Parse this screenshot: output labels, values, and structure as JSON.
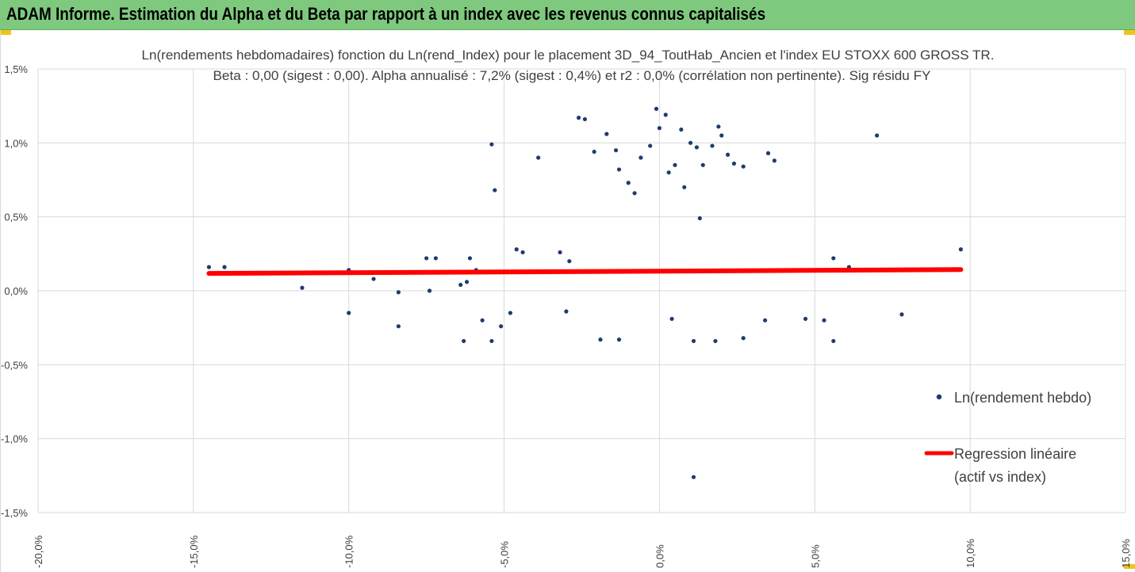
{
  "banner": {
    "title": "ADAM Informe. Estimation du Alpha et du Beta par rapport à un index avec les revenus connus capitalisés"
  },
  "colors": {
    "banner_bg": "#7fc97f",
    "point": "#1f3b70",
    "regression": "#ff0000",
    "grid": "#d9d9d9",
    "accent_corner": "#f0c419"
  },
  "chart_data": {
    "type": "scatter",
    "title": "Ln(rendements hebdomadaires) fonction du Ln(rend_Index) pour le placement 3D_94_ToutHab_Ancien et l'index EU STOXX 600 GROSS TR.",
    "subtitle": "Beta : 0,00 (sigest : 0,00). Alpha annualisé : 7,2% (sigest : 0,4%) et r2 : 0,0% (corrélation non pertinente). Sig résidu FY",
    "xlabel": "",
    "ylabel": "",
    "xlim": [
      -20,
      15
    ],
    "ylim": [
      -1.5,
      1.5
    ],
    "x_ticks": [
      -20,
      -15,
      -10,
      -5,
      0,
      5,
      10,
      15
    ],
    "x_tick_labels": [
      "-20,0%",
      "-15,0%",
      "-10,0%",
      "-5,0%",
      "0,0%",
      "5,0%",
      "10,0%",
      "15,0%"
    ],
    "y_ticks": [
      1.5,
      1.0,
      0.5,
      0.0,
      -0.5,
      -1.0,
      -1.5
    ],
    "y_tick_labels": [
      "1,5%",
      "1,0%",
      "0,5%",
      "0,0%",
      "-0,5%",
      "-1,0%",
      "-1,5%"
    ],
    "grid": true,
    "legend_position": "right",
    "series": [
      {
        "name": "Ln(rendement hebdo)",
        "kind": "scatter",
        "points": [
          [
            -14.5,
            0.16
          ],
          [
            -14.0,
            0.16
          ],
          [
            -11.5,
            0.02
          ],
          [
            -10.0,
            -0.15
          ],
          [
            -10.0,
            0.14
          ],
          [
            -9.2,
            0.08
          ],
          [
            -8.4,
            -0.01
          ],
          [
            -8.4,
            -0.24
          ],
          [
            -7.5,
            0.22
          ],
          [
            -7.2,
            0.22
          ],
          [
            -7.4,
            0.0
          ],
          [
            -6.3,
            -0.34
          ],
          [
            -6.4,
            0.04
          ],
          [
            -6.2,
            0.06
          ],
          [
            -6.1,
            0.22
          ],
          [
            -5.9,
            0.14
          ],
          [
            -5.7,
            -0.2
          ],
          [
            -5.4,
            -0.34
          ],
          [
            -5.1,
            -0.24
          ],
          [
            -5.4,
            0.99
          ],
          [
            -5.3,
            0.68
          ],
          [
            -4.8,
            -0.15
          ],
          [
            -4.6,
            0.28
          ],
          [
            -4.4,
            0.26
          ],
          [
            -3.9,
            0.9
          ],
          [
            -3.2,
            0.26
          ],
          [
            -2.9,
            0.2
          ],
          [
            -3.0,
            -0.14
          ],
          [
            -2.6,
            1.17
          ],
          [
            -2.4,
            1.16
          ],
          [
            -2.1,
            0.94
          ],
          [
            -1.7,
            1.06
          ],
          [
            -1.4,
            0.95
          ],
          [
            -1.3,
            0.82
          ],
          [
            -1.0,
            0.73
          ],
          [
            -0.8,
            0.66
          ],
          [
            -0.6,
            0.9
          ],
          [
            -0.3,
            0.98
          ],
          [
            -0.1,
            1.23
          ],
          [
            0.0,
            1.1
          ],
          [
            0.2,
            1.19
          ],
          [
            0.3,
            0.8
          ],
          [
            0.5,
            0.85
          ],
          [
            0.7,
            1.09
          ],
          [
            0.8,
            0.7
          ],
          [
            1.0,
            1.0
          ],
          [
            1.2,
            0.97
          ],
          [
            1.4,
            0.85
          ],
          [
            1.7,
            0.98
          ],
          [
            1.9,
            1.11
          ],
          [
            2.0,
            1.05
          ],
          [
            2.2,
            0.92
          ],
          [
            2.4,
            0.86
          ],
          [
            2.7,
            0.84
          ],
          [
            3.5,
            0.93
          ],
          [
            3.7,
            0.88
          ],
          [
            -1.9,
            -0.33
          ],
          [
            -1.3,
            -0.33
          ],
          [
            0.4,
            -0.19
          ],
          [
            1.1,
            -0.34
          ],
          [
            1.8,
            -0.34
          ],
          [
            2.7,
            -0.32
          ],
          [
            3.4,
            -0.2
          ],
          [
            4.7,
            -0.19
          ],
          [
            5.3,
            -0.2
          ],
          [
            5.6,
            -0.34
          ],
          [
            5.6,
            0.22
          ],
          [
            6.1,
            0.16
          ],
          [
            7.8,
            -0.16
          ],
          [
            8.2,
            0.14
          ],
          [
            9.7,
            0.28
          ],
          [
            7.0,
            1.05
          ],
          [
            1.1,
            -1.26
          ],
          [
            1.3,
            0.49
          ]
        ]
      },
      {
        "name": "Regression linéaire (actif vs index)",
        "legend_lines": [
          "Regression linéaire",
          "(actif vs index)"
        ],
        "kind": "line",
        "x": [
          -14.5,
          9.7
        ],
        "y": [
          0.117,
          0.143
        ]
      }
    ]
  }
}
